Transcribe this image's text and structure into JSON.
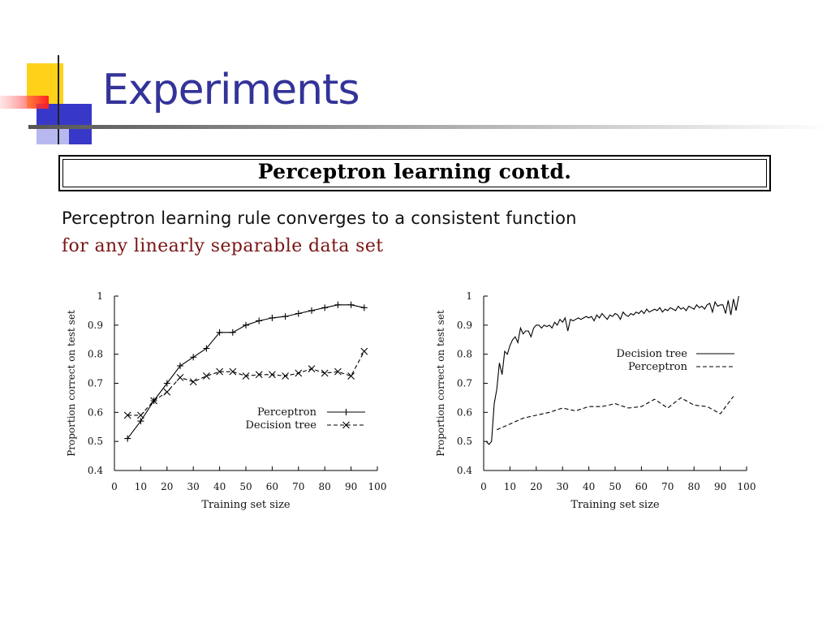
{
  "slide": {
    "title": "Experiments",
    "title_color": "#333399",
    "banner": "Perceptron learning contd.",
    "text_line1": "Perceptron learning rule converges to a consistent function",
    "text_line2": "for any linearly separable data set",
    "text_line2_color": "#7a1414"
  },
  "chart_data": [
    {
      "type": "line",
      "xlabel": "Training set size",
      "ylabel": "Proportion correct on test set",
      "xlim": [
        0,
        100
      ],
      "ylim": [
        0.4,
        1
      ],
      "xticks": [
        0,
        10,
        20,
        30,
        40,
        50,
        60,
        70,
        80,
        90,
        100
      ],
      "yticks": [
        0.4,
        0.5,
        0.6,
        0.7,
        0.8,
        0.9,
        1
      ],
      "legend": "right",
      "series": [
        {
          "name": "Perceptron",
          "style": "solid",
          "marker": "plus",
          "x": [
            5,
            10,
            15,
            20,
            25,
            30,
            35,
            40,
            45,
            50,
            55,
            60,
            65,
            70,
            75,
            80,
            85,
            90,
            95
          ],
          "y": [
            0.51,
            0.57,
            0.64,
            0.7,
            0.76,
            0.79,
            0.82,
            0.875,
            0.875,
            0.9,
            0.915,
            0.925,
            0.93,
            0.94,
            0.95,
            0.96,
            0.97,
            0.97,
            0.96
          ]
        },
        {
          "name": "Decision tree",
          "style": "dashed",
          "marker": "cross",
          "x": [
            5,
            10,
            15,
            20,
            25,
            30,
            35,
            40,
            45,
            50,
            55,
            60,
            65,
            70,
            75,
            80,
            85,
            90,
            95
          ],
          "y": [
            0.59,
            0.59,
            0.64,
            0.67,
            0.72,
            0.705,
            0.725,
            0.74,
            0.74,
            0.725,
            0.73,
            0.73,
            0.725,
            0.735,
            0.75,
            0.735,
            0.74,
            0.725,
            0.81
          ]
        }
      ]
    },
    {
      "type": "line",
      "xlabel": "Training set size",
      "ylabel": "Proportion correct on test set",
      "xlim": [
        0,
        100
      ],
      "ylim": [
        0.4,
        1
      ],
      "xticks": [
        0,
        10,
        20,
        30,
        40,
        50,
        60,
        70,
        80,
        90,
        100
      ],
      "yticks": [
        0.4,
        0.5,
        0.6,
        0.7,
        0.8,
        0.9,
        1
      ],
      "legend": "right",
      "series": [
        {
          "name": "Decision tree",
          "style": "solid",
          "marker": "none",
          "x": [
            1,
            2,
            3,
            4,
            5,
            6,
            7,
            8,
            9,
            10,
            11,
            12,
            13,
            14,
            15,
            16,
            17,
            18,
            19,
            20,
            21,
            22,
            23,
            24,
            25,
            26,
            27,
            28,
            29,
            30,
            31,
            32,
            33,
            34,
            35,
            36,
            37,
            38,
            39,
            40,
            41,
            42,
            43,
            44,
            45,
            46,
            47,
            48,
            49,
            50,
            51,
            52,
            53,
            54,
            55,
            56,
            57,
            58,
            59,
            60,
            61,
            62,
            63,
            64,
            65,
            66,
            67,
            68,
            69,
            70,
            71,
            72,
            73,
            74,
            75,
            76,
            77,
            78,
            79,
            80,
            81,
            82,
            83,
            84,
            85,
            86,
            87,
            88,
            89,
            90,
            91,
            92,
            93,
            94,
            95,
            96,
            97
          ],
          "y": [
            0.5,
            0.49,
            0.5,
            0.63,
            0.68,
            0.77,
            0.73,
            0.81,
            0.8,
            0.83,
            0.85,
            0.86,
            0.84,
            0.89,
            0.87,
            0.88,
            0.88,
            0.86,
            0.89,
            0.9,
            0.9,
            0.89,
            0.9,
            0.895,
            0.9,
            0.89,
            0.91,
            0.9,
            0.92,
            0.91,
            0.925,
            0.88,
            0.92,
            0.915,
            0.92,
            0.925,
            0.92,
            0.925,
            0.93,
            0.925,
            0.93,
            0.915,
            0.935,
            0.925,
            0.94,
            0.93,
            0.92,
            0.935,
            0.93,
            0.94,
            0.935,
            0.92,
            0.945,
            0.935,
            0.93,
            0.94,
            0.935,
            0.945,
            0.94,
            0.95,
            0.94,
            0.955,
            0.945,
            0.95,
            0.955,
            0.95,
            0.96,
            0.945,
            0.955,
            0.95,
            0.96,
            0.955,
            0.95,
            0.965,
            0.955,
            0.96,
            0.95,
            0.965,
            0.96,
            0.955,
            0.97,
            0.96,
            0.965,
            0.955,
            0.97,
            0.975,
            0.945,
            0.98,
            0.965,
            0.97,
            0.97,
            0.94,
            0.985,
            0.935,
            0.99,
            0.95,
            1.0
          ]
        },
        {
          "name": "Perceptron",
          "style": "dashed",
          "marker": "none",
          "x": [
            5,
            10,
            15,
            20,
            25,
            30,
            35,
            40,
            45,
            50,
            55,
            60,
            65,
            70,
            75,
            80,
            85,
            90,
            95
          ],
          "y": [
            0.54,
            0.56,
            0.58,
            0.59,
            0.6,
            0.615,
            0.605,
            0.62,
            0.62,
            0.63,
            0.615,
            0.62,
            0.645,
            0.615,
            0.65,
            0.625,
            0.62,
            0.595,
            0.655
          ]
        }
      ]
    }
  ]
}
